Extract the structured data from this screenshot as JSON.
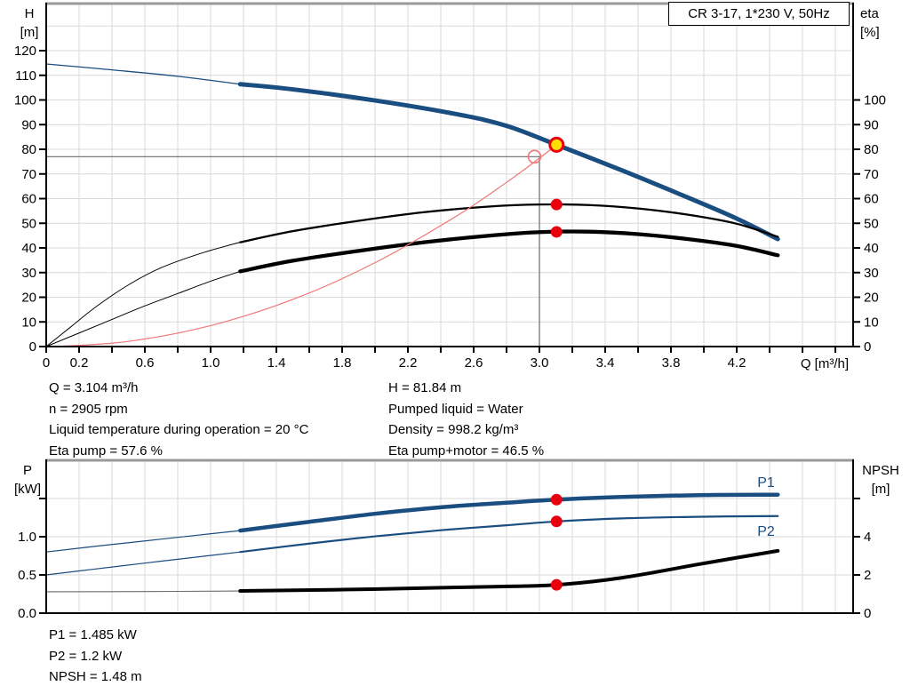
{
  "colors": {
    "blue": "#1a4d80",
    "black": "#000000",
    "grey": "#6a6a6a",
    "red": "#e8000d",
    "red_line": "#f07878",
    "yellow": "#ffdf00",
    "grid": "#d9d9d9",
    "cross": "#6b6b6b",
    "frame": "#9a9a9a",
    "label_blue": "#1a4d80"
  },
  "chart_data": [
    {
      "type": "line",
      "title_box": "CR 3-17, 1*230 V, 50Hz",
      "ylabel_left_lines": [
        "H",
        "[m]"
      ],
      "ylabel_right_lines": [
        "eta",
        "[%]"
      ],
      "xlabel": "Q [m³/h]",
      "x_axis": {
        "min": 0,
        "max": 4.908,
        "tick_step": 0.2,
        "tick_max": 4.8,
        "show_ticks": true,
        "labeled_ticks": [
          [
            0,
            "0"
          ],
          [
            0.2,
            "0.2"
          ],
          [
            0.6,
            "0.6"
          ],
          [
            1,
            "1.0"
          ],
          [
            1.4,
            "1.4"
          ],
          [
            1.8,
            "1.8"
          ],
          [
            2.2,
            "2.2"
          ],
          [
            2.6,
            "2.6"
          ],
          [
            3,
            "3.0"
          ],
          [
            3.4,
            "3.4"
          ],
          [
            3.8,
            "3.8"
          ],
          [
            4.2,
            "4.2"
          ]
        ]
      },
      "y_left": {
        "min": 0,
        "max": 139.1,
        "grid_step": 10,
        "grid_max": 130,
        "ticks": [
          [
            0,
            "0"
          ],
          [
            10,
            "10"
          ],
          [
            20,
            "20"
          ],
          [
            30,
            "30"
          ],
          [
            40,
            "40"
          ],
          [
            50,
            "50"
          ],
          [
            60,
            "60"
          ],
          [
            70,
            "70"
          ],
          [
            80,
            "80"
          ],
          [
            90,
            "90"
          ],
          [
            100,
            "100"
          ],
          [
            110,
            "110"
          ],
          [
            120,
            "120"
          ]
        ]
      },
      "y_right": {
        "min": 0,
        "max": 139.1,
        "ticks": [
          [
            0,
            "0"
          ],
          [
            10,
            "10"
          ],
          [
            20,
            "20"
          ],
          [
            30,
            "30"
          ],
          [
            40,
            "40"
          ],
          [
            50,
            "50"
          ],
          [
            60,
            "60"
          ],
          [
            70,
            "70"
          ],
          [
            80,
            "80"
          ],
          [
            90,
            "90"
          ],
          [
            100,
            "100"
          ]
        ]
      },
      "series": [
        {
          "name": "head-curve-thin",
          "axis": "left",
          "color": "blue",
          "width": 1.3,
          "points": [
            [
              0,
              114.6
            ],
            [
              0.4,
              112.2
            ],
            [
              0.8,
              109.6
            ],
            [
              1.18,
              106.4
            ]
          ]
        },
        {
          "name": "head-curve",
          "axis": "left",
          "color": "blue",
          "width": 5,
          "points": [
            [
              1.18,
              106.4
            ],
            [
              1.5,
              104.3
            ],
            [
              2,
              99.8
            ],
            [
              2.5,
              94.2
            ],
            [
              2.8,
              89.5
            ],
            [
              3.104,
              81.84
            ],
            [
              3.5,
              71.5
            ],
            [
              3.9,
              60.5
            ],
            [
              4.2,
              51.9
            ],
            [
              4.45,
              43.6
            ]
          ]
        },
        {
          "name": "eta-pump-thin",
          "axis": "right",
          "color": "black",
          "width": 1,
          "points": [
            [
              0,
              0
            ],
            [
              0.15,
              8
            ],
            [
              0.3,
              16
            ],
            [
              0.5,
              25
            ],
            [
              0.7,
              32
            ],
            [
              0.95,
              38
            ],
            [
              1.18,
              42.3
            ]
          ]
        },
        {
          "name": "eta-pump",
          "axis": "right",
          "color": "black",
          "width": 2.3,
          "points": [
            [
              1.18,
              42.3
            ],
            [
              1.5,
              46.8
            ],
            [
              1.9,
              51
            ],
            [
              2.3,
              54.5
            ],
            [
              2.7,
              56.8
            ],
            [
              3,
              57.6
            ],
            [
              3.3,
              57.4
            ],
            [
              3.6,
              56
            ],
            [
              3.9,
              53.5
            ],
            [
              4.2,
              49.8
            ],
            [
              4.45,
              44.5
            ]
          ]
        },
        {
          "name": "eta-pump-motor-thin",
          "axis": "right",
          "color": "black",
          "width": 1,
          "points": [
            [
              0,
              0
            ],
            [
              0.2,
              5.5
            ],
            [
              0.4,
              11
            ],
            [
              0.6,
              16.5
            ],
            [
              0.8,
              21.5
            ],
            [
              1,
              26.5
            ],
            [
              1.18,
              30.5
            ]
          ]
        },
        {
          "name": "eta-pump-motor",
          "axis": "right",
          "color": "black",
          "width": 4.3,
          "points": [
            [
              1.18,
              30.5
            ],
            [
              1.5,
              34.8
            ],
            [
              1.9,
              38.8
            ],
            [
              2.3,
              42.3
            ],
            [
              2.7,
              45
            ],
            [
              3,
              46.4
            ],
            [
              3.3,
              46.6
            ],
            [
              3.6,
              45.6
            ],
            [
              3.9,
              43.6
            ],
            [
              4.2,
              40.8
            ],
            [
              4.45,
              37
            ]
          ]
        },
        {
          "name": "system-curve",
          "axis": "left",
          "color": "red_line",
          "width": 1.2,
          "points": [
            [
              0.05,
              0
            ],
            [
              0.5,
              2.1
            ],
            [
              1,
              8.5
            ],
            [
              1.5,
              19.1
            ],
            [
              2,
              34
            ],
            [
              2.5,
              53.1
            ],
            [
              2.8,
              66.6
            ],
            [
              3,
              76.4
            ],
            [
              3.104,
              81.84
            ]
          ]
        }
      ],
      "crosshair": {
        "x": 3,
        "y": 77,
        "circle_x": 2.97
      },
      "markers": [
        {
          "axis": "left",
          "x": 3.104,
          "y": 81.84,
          "style": "yellow",
          "name": "duty-point-marker"
        },
        {
          "axis": "right",
          "x": 3.104,
          "y": 57.6,
          "style": "red",
          "name": "eta-pump-point-marker"
        },
        {
          "axis": "right",
          "x": 3.104,
          "y": 46.5,
          "style": "red",
          "name": "eta-pump-motor-point-marker"
        }
      ],
      "annotations_left": [
        "Q = 3.104 m³/h",
        "n = 2905 rpm",
        "Liquid temperature during operation = 20 °C",
        "Eta pump = 57.6 %"
      ],
      "annotations_right": [
        "H = 81.84 m",
        "Pumped liquid = Water",
        "Density = 998.2 kg/m³",
        "Eta pump+motor = 46.5 %"
      ]
    },
    {
      "type": "line",
      "ylabel_left_lines": [
        "P",
        "[kW]"
      ],
      "ylabel_right_lines": [
        "NPSH",
        "[m]"
      ],
      "x_axis": {
        "min": 0,
        "max": 4.908,
        "tick_step": 0.2,
        "tick_max": 4.8,
        "show_ticks": false,
        "labeled_ticks": []
      },
      "y_left": {
        "min": 0,
        "max": 2,
        "grid_step": 0.5,
        "grid_max": 1.5,
        "ticks": [
          [
            0,
            "0.0"
          ],
          [
            0.5,
            "0.5"
          ],
          [
            1,
            "1.0"
          ],
          [
            1.5,
            ""
          ]
        ]
      },
      "y_right": {
        "min": 0,
        "max": 8,
        "ticks": [
          [
            0,
            "0"
          ],
          [
            2,
            "2"
          ],
          [
            4,
            "4"
          ],
          [
            6,
            ""
          ]
        ]
      },
      "series": [
        {
          "name": "p1-curve-thin",
          "axis": "left",
          "color": "blue",
          "width": 1.2,
          "points": [
            [
              0,
              0.8
            ],
            [
              0.3,
              0.875
            ],
            [
              0.6,
              0.945
            ],
            [
              0.9,
              1.015
            ],
            [
              1.18,
              1.08
            ]
          ]
        },
        {
          "name": "p1-curve",
          "axis": "left",
          "color": "blue",
          "width": 4.5,
          "points": [
            [
              1.18,
              1.08
            ],
            [
              1.6,
              1.195
            ],
            [
              2,
              1.3
            ],
            [
              2.4,
              1.385
            ],
            [
              2.8,
              1.445
            ],
            [
              3.104,
              1.485
            ],
            [
              3.5,
              1.52
            ],
            [
              4,
              1.545
            ],
            [
              4.45,
              1.55
            ]
          ]
        },
        {
          "name": "p2-curve-thin",
          "axis": "left",
          "color": "blue",
          "width": 1.2,
          "points": [
            [
              0,
              0.5
            ],
            [
              0.3,
              0.578
            ],
            [
              0.6,
              0.655
            ],
            [
              0.9,
              0.73
            ],
            [
              1.18,
              0.8
            ]
          ]
        },
        {
          "name": "p2-curve",
          "axis": "left",
          "color": "blue",
          "width": 2.2,
          "points": [
            [
              1.18,
              0.8
            ],
            [
              1.6,
              0.91
            ],
            [
              2,
              1.005
            ],
            [
              2.4,
              1.085
            ],
            [
              2.8,
              1.15
            ],
            [
              3.104,
              1.2
            ],
            [
              3.5,
              1.24
            ],
            [
              4,
              1.262
            ],
            [
              4.45,
              1.27
            ]
          ]
        },
        {
          "name": "npsh-curve-thin",
          "axis": "right",
          "color": "grey",
          "width": 1.1,
          "points": [
            [
              0,
              1.12
            ],
            [
              0.6,
              1.13
            ],
            [
              1.18,
              1.16
            ]
          ]
        },
        {
          "name": "npsh-curve",
          "axis": "right",
          "color": "black",
          "width": 4,
          "points": [
            [
              1.18,
              1.16
            ],
            [
              1.8,
              1.23
            ],
            [
              2.4,
              1.33
            ],
            [
              2.8,
              1.4
            ],
            [
              3.104,
              1.48
            ],
            [
              3.5,
              1.85
            ],
            [
              3.97,
              2.56
            ],
            [
              4.2,
              2.9
            ],
            [
              4.45,
              3.26
            ]
          ]
        }
      ],
      "markers": [
        {
          "axis": "left",
          "x": 3.104,
          "y": 1.485,
          "style": "red",
          "name": "p1-point-marker"
        },
        {
          "axis": "left",
          "x": 3.104,
          "y": 1.2,
          "style": "red",
          "name": "p2-point-marker"
        },
        {
          "axis": "right",
          "x": 3.104,
          "y": 1.48,
          "style": "red",
          "name": "npsh-point-marker"
        }
      ],
      "series_labels": [
        "P1",
        "P2"
      ],
      "annotations": [
        "P1 = 1.485 kW",
        "P2 = 1.2 kW",
        "NPSH = 1.48 m"
      ]
    }
  ]
}
